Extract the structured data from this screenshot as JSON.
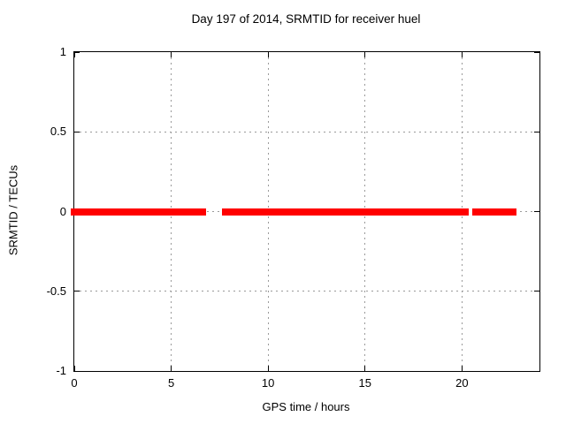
{
  "chart_data": {
    "type": "scatter",
    "title": "Day 197 of 2014, SRMTID for receiver huel",
    "xlabel": "GPS time / hours",
    "ylabel": "SRMTID / TECUs",
    "xlim": [
      0,
      24
    ],
    "ylim": [
      -1,
      1
    ],
    "grid": true,
    "legend": "none",
    "xticks": [
      {
        "v": 0,
        "label": "0"
      },
      {
        "v": 5,
        "label": "5"
      },
      {
        "v": 10,
        "label": "10"
      },
      {
        "v": 15,
        "label": "15"
      },
      {
        "v": 20,
        "label": "20"
      }
    ],
    "yticks": [
      {
        "v": -1,
        "label": "-1"
      },
      {
        "v": -0.5,
        "label": "-0.5"
      },
      {
        "v": 0,
        "label": "0"
      },
      {
        "v": 0.5,
        "label": "0.5"
      },
      {
        "v": 1,
        "label": "1"
      }
    ],
    "series": [
      {
        "name": "SRMTID",
        "color": "#ff0000",
        "y_value": 0,
        "marker": "filled-square-band",
        "segments_hours": [
          [
            0,
            6.8
          ],
          [
            7.62,
            20.35
          ],
          [
            20.53,
            22.83
          ]
        ]
      }
    ]
  },
  "colors": {
    "background": "#ffffff",
    "axis": "#000000",
    "grid": "#9a9a9a",
    "data": "#ff0000"
  }
}
